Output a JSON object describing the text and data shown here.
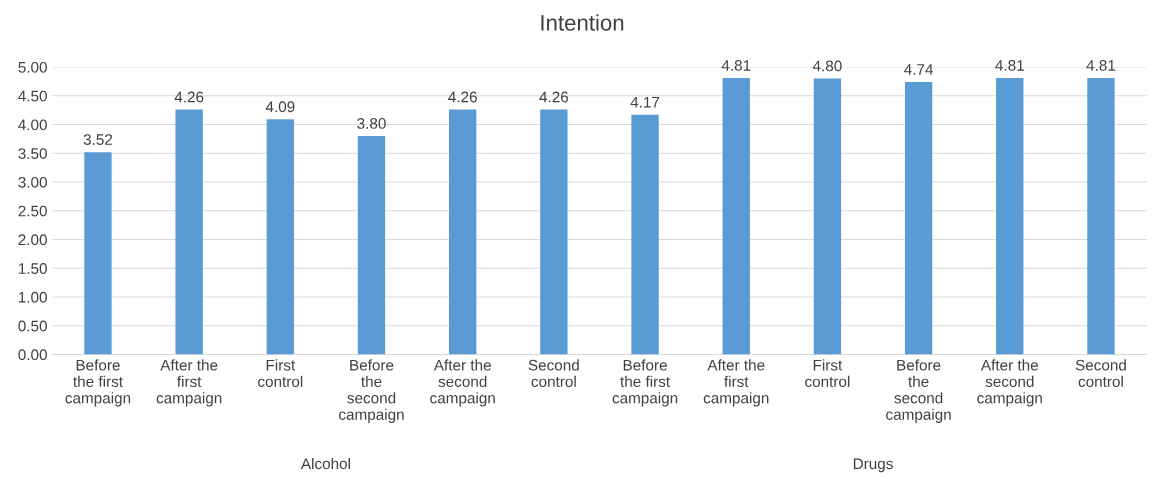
{
  "chart_data": {
    "type": "bar",
    "title": "Intention",
    "categories": [
      "Before\nthe first\ncampaign",
      "After the\nfirst\ncampaign",
      "First\ncontrol",
      "Before\nthe\nsecond\ncampaign",
      "After the\nsecond\ncampaign",
      "Second\ncontrol",
      "Before\nthe first\ncampaign",
      "After the\nfirst\ncampaign",
      "First\ncontrol",
      "Before\nthe\nsecond\ncampaign",
      "After the\nsecond\ncampaign",
      "Second\ncontrol"
    ],
    "values": [
      3.52,
      4.26,
      4.09,
      3.8,
      4.26,
      4.26,
      4.17,
      4.81,
      4.8,
      4.74,
      4.81,
      4.81
    ],
    "value_labels": [
      "3.52",
      "4.26",
      "4.09",
      "3.80",
      "4.26",
      "4.26",
      "4.17",
      "4.81",
      "4.80",
      "4.74",
      "4.81",
      "4.81"
    ],
    "color": "#5b9bd5",
    "ylim": [
      0,
      5
    ],
    "yticks": [
      {
        "value": 0,
        "label": "0.00"
      },
      {
        "value": 0.5,
        "label": "0.50"
      },
      {
        "value": 1,
        "label": "1.00"
      },
      {
        "value": 1.5,
        "label": "1.50"
      },
      {
        "value": 2,
        "label": "2.00"
      },
      {
        "value": 2.5,
        "label": "2.50"
      },
      {
        "value": 3,
        "label": "3.00"
      },
      {
        "value": 3.5,
        "label": "3.50"
      },
      {
        "value": 4,
        "label": "4.00"
      },
      {
        "value": 4.5,
        "label": "4.50"
      },
      {
        "value": 5,
        "label": "5.00"
      }
    ],
    "grid": "y",
    "annotations": [
      "Alcohol",
      "Drugs"
    ]
  }
}
